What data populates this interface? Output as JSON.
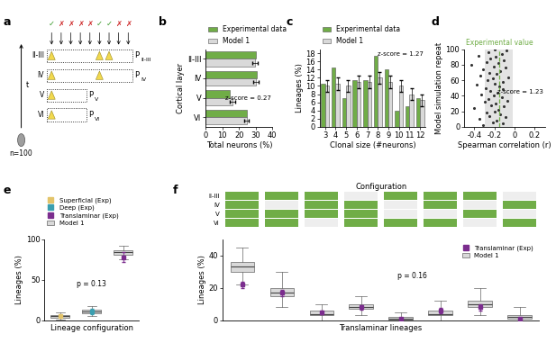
{
  "panel_labels": [
    "a",
    "b",
    "c",
    "d",
    "e",
    "f"
  ],
  "diagram": {
    "layers": [
      "II-III",
      "IV",
      "V",
      "VI"
    ],
    "prob_symbol": "P",
    "n_label": "n=100",
    "time_label": "t",
    "check_symbol": "✓",
    "cross_symbol": "✗",
    "checks": [
      true,
      false,
      false,
      false,
      false,
      true,
      true,
      false,
      false
    ]
  },
  "chart_data": [
    {
      "type": "bar",
      "orientation": "horizontal",
      "categories": [
        "II-III",
        "IV",
        "V",
        "VI"
      ],
      "series": [
        {
          "name": "Experimental data",
          "color": "#70ad47",
          "values": [
            30,
            30.5,
            14.5,
            24.5
          ]
        },
        {
          "name": "Model 1",
          "color": "#d9d9d9",
          "values": [
            29.5,
            30,
            16,
            24.5
          ],
          "errors": [
            1.5,
            1.5,
            1.5,
            1.5
          ]
        }
      ],
      "xlim": [
        0,
        40
      ],
      "xticks": [
        0,
        10,
        20,
        30,
        40
      ],
      "x_label": "Total neurons (%)",
      "y_label": "Cortical layer",
      "annotation": "z-score = 0.27",
      "legend": "lower left"
    },
    {
      "type": "bar",
      "categories": [
        "3",
        "4",
        "5",
        "6",
        "7",
        "8",
        "9",
        "10",
        "11",
        "12"
      ],
      "series": [
        {
          "name": "Experimental data",
          "color": "#70ad47",
          "values": [
            10.5,
            14.5,
            7,
            11.5,
            11.5,
            17.5,
            14,
            4,
            5,
            7
          ]
        },
        {
          "name": "Model 1",
          "color": "#d9d9d9",
          "values": [
            10,
            10.5,
            10,
            11,
            11,
            12,
            11,
            10,
            8,
            6.5
          ],
          "errors": [
            1.5,
            1.5,
            1.5,
            1.5,
            1.5,
            1.5,
            1.5,
            1.5,
            1.5,
            1.5
          ]
        }
      ],
      "ylim": [
        0,
        19
      ],
      "yticks": [
        0,
        2,
        4,
        6,
        8,
        10,
        12,
        14,
        16,
        18
      ],
      "x_label": "Clonal size (#neurons)",
      "y_label": "Lineages (%)",
      "annotation": "z-score = 1.27",
      "legend": "lower left"
    },
    {
      "type": "scatter",
      "color": "#333333",
      "x": [
        -0.31,
        -0.12,
        -0.22,
        -0.18,
        -0.35,
        -0.09,
        -0.25,
        -0.14,
        -0.28,
        -0.2,
        -0.16,
        -0.4,
        -0.11,
        -0.23,
        -0.19,
        -0.3,
        -0.07,
        -0.26,
        -0.13,
        -0.21,
        -0.33,
        -0.17,
        -0.24,
        -0.12,
        -0.29,
        -0.15,
        -0.38,
        -0.2,
        -0.12,
        -0.27,
        -0.22,
        -0.06,
        -0.34,
        -0.18,
        -0.25,
        -0.14,
        -0.31,
        -0.09,
        -0.21,
        -0.43,
        -0.16,
        -0.28,
        -0.11,
        -0.24,
        -0.19,
        -0.36,
        -0.13,
        -0.26,
        -0.08,
        -0.2
      ],
      "y": [
        2,
        4,
        6,
        8,
        10,
        12,
        14,
        16,
        18,
        20,
        22,
        24,
        26,
        28,
        30,
        32,
        34,
        36,
        38,
        40,
        42,
        44,
        46,
        48,
        50,
        52,
        54,
        56,
        58,
        60,
        62,
        64,
        66,
        68,
        70,
        72,
        74,
        76,
        78,
        80,
        82,
        84,
        86,
        88,
        90,
        92,
        94,
        96,
        98,
        100
      ],
      "xlim": [
        -0.5,
        0.3
      ],
      "xticks": [
        -0.4,
        -0.2,
        0,
        0.2
      ],
      "ylim": [
        0,
        100
      ],
      "yticks": [
        0,
        20,
        40,
        60,
        80,
        100
      ],
      "x_label": "Spearman correlation (r)",
      "y_label": "Model simulation repeat",
      "reference": {
        "label": "Experimental value",
        "value": -0.15,
        "color": "#70ad47"
      },
      "band": [
        -0.3,
        -0.02
      ],
      "annotation": "z-score = 1.23"
    },
    {
      "type": "box",
      "tick_labels": "y",
      "exp": {
        "names": [
          "Superficial (Exp)",
          "Deep (Exp)",
          "Translaminar (Exp)"
        ],
        "colors": [
          "#e3c46a",
          "#3a9fb0",
          "#7b2d8e"
        ],
        "values": [
          5,
          11,
          78
        ],
        "errors": [
          2,
          3,
          6
        ]
      },
      "model": {
        "name": "Model 1",
        "color": "#d9d9d9",
        "boxes": [
          {
            "med": 5,
            "q1": 3.5,
            "q3": 6.5,
            "whislo": 1,
            "whishi": 10
          },
          {
            "med": 11,
            "q1": 9,
            "q3": 13,
            "whislo": 5,
            "whishi": 18
          },
          {
            "med": 84,
            "q1": 81,
            "q3": 86,
            "whislo": 75,
            "whishi": 92
          }
        ]
      },
      "ylim": [
        0,
        100
      ],
      "yticks": [
        0,
        50,
        100
      ],
      "x_label": "Lineage configuration",
      "y_label": "Lineages (%)",
      "annotation": "p = 0.13",
      "legend": "upper left"
    },
    {
      "type": "box",
      "tick_labels": "y",
      "config_title": "Configuration",
      "config_rows": [
        "II-III",
        "IV",
        "V",
        "VI"
      ],
      "config_color": "#70ad47",
      "configurations": [
        [
          1,
          1,
          1,
          1
        ],
        [
          1,
          0,
          1,
          1
        ],
        [
          1,
          1,
          1,
          0
        ],
        [
          0,
          1,
          1,
          1
        ],
        [
          1,
          0,
          0,
          1
        ],
        [
          1,
          1,
          0,
          1
        ],
        [
          1,
          0,
          1,
          0
        ],
        [
          0,
          1,
          0,
          1
        ]
      ],
      "exp": {
        "name": "Translaminar (Exp)",
        "color": "#7b2d8e",
        "values": [
          22,
          17,
          5,
          8,
          1,
          6,
          8,
          1
        ],
        "errors": [
          2,
          2,
          1,
          1.5,
          0.5,
          1.5,
          2,
          0.5
        ]
      },
      "model": {
        "name": "Model 1",
        "color": "#d9d9d9",
        "boxes": [
          {
            "med": 33,
            "q1": 30,
            "q3": 36,
            "whislo": 22,
            "whishi": 45
          },
          {
            "med": 17,
            "q1": 15,
            "q3": 20,
            "whislo": 8,
            "whishi": 30
          },
          {
            "med": 4,
            "q1": 3,
            "q3": 6,
            "whislo": 0,
            "whishi": 10
          },
          {
            "med": 8,
            "q1": 7,
            "q3": 10,
            "whislo": 3,
            "whishi": 15
          },
          {
            "med": 1,
            "q1": 0.5,
            "q3": 2,
            "whislo": 0,
            "whishi": 5
          },
          {
            "med": 4,
            "q1": 3,
            "q3": 6,
            "whislo": 0,
            "whishi": 12
          },
          {
            "med": 10,
            "q1": 8,
            "q3": 12,
            "whislo": 3,
            "whishi": 20
          },
          {
            "med": 2,
            "q1": 1,
            "q3": 3,
            "whislo": 0,
            "whishi": 8
          }
        ]
      },
      "ylim": [
        0,
        50
      ],
      "yticks": [
        0,
        20,
        40
      ],
      "x_label": "Translaminar lineages",
      "y_label": "Lineages (%)",
      "annotation": "p = 0.16",
      "legend": "upper right"
    }
  ]
}
